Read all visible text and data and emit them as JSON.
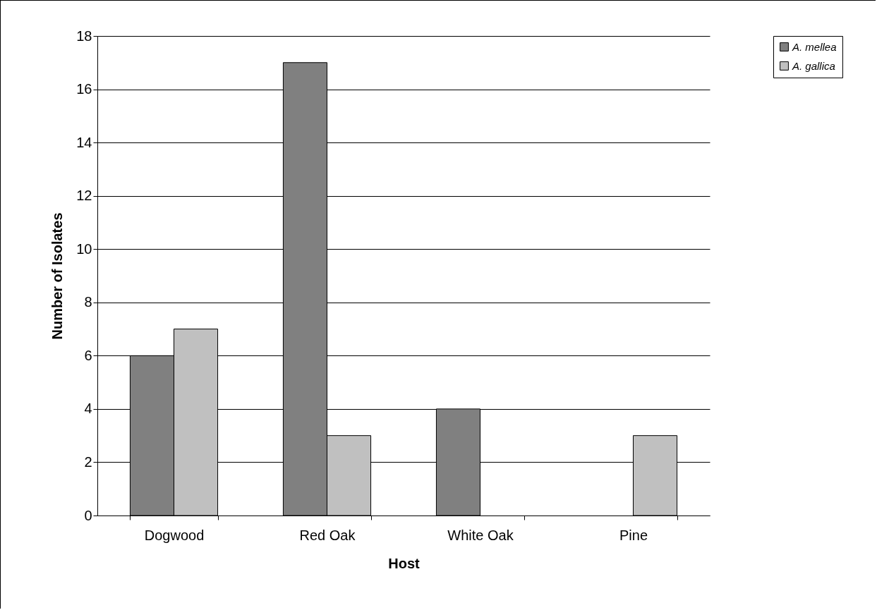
{
  "chart_data": {
    "type": "bar",
    "xlabel": "Host",
    "ylabel": "Number of Isolates",
    "categories": [
      "Dogwood",
      "Red Oak",
      "White Oak",
      "Pine"
    ],
    "series": [
      {
        "name": "A. mellea",
        "color": "#808080",
        "values": [
          6,
          17,
          4,
          null
        ]
      },
      {
        "name": "A. gallica",
        "color": "#c0c0c0",
        "values": [
          7,
          3,
          null,
          3
        ]
      }
    ],
    "ylim": [
      0,
      18
    ],
    "yticks": [
      0,
      2,
      4,
      6,
      8,
      10,
      12,
      14,
      16,
      18
    ],
    "grid": "y",
    "legend": "right"
  }
}
